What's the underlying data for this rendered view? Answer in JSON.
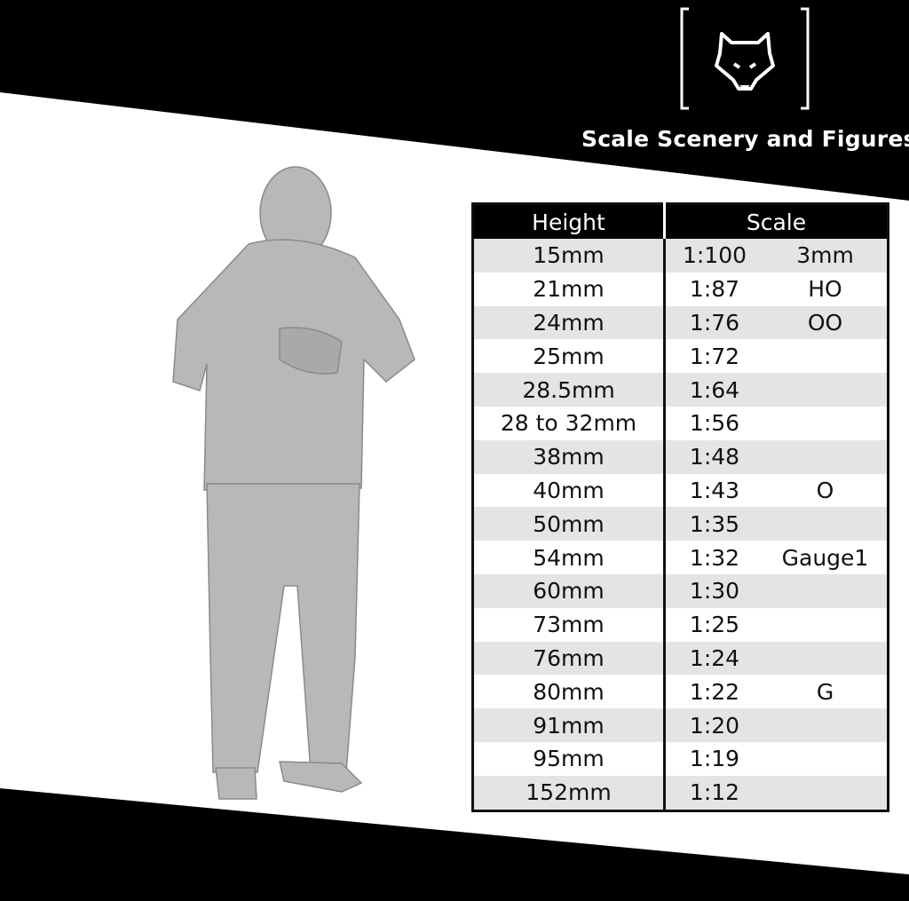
{
  "brand": {
    "name": "Scale Scenery and Figures",
    "logo_icon": "wolf-head-icon"
  },
  "colors": {
    "band": "#000000",
    "row_alt": "#e4e4e4",
    "figure": "#b8b8b8"
  },
  "table": {
    "headers": [
      "Height",
      "Scale"
    ],
    "rows": [
      {
        "height": "15mm",
        "ratio": "1:100",
        "gauge": "3mm"
      },
      {
        "height": "21mm",
        "ratio": "1:87",
        "gauge": "HO"
      },
      {
        "height": "24mm",
        "ratio": "1:76",
        "gauge": "OO"
      },
      {
        "height": "25mm",
        "ratio": "1:72",
        "gauge": ""
      },
      {
        "height": "28.5mm",
        "ratio": "1:64",
        "gauge": ""
      },
      {
        "height": "28 to 32mm",
        "ratio": "1:56",
        "gauge": ""
      },
      {
        "height": "38mm",
        "ratio": "1:48",
        "gauge": ""
      },
      {
        "height": "40mm",
        "ratio": "1:43",
        "gauge": "O"
      },
      {
        "height": "50mm",
        "ratio": "1:35",
        "gauge": ""
      },
      {
        "height": "54mm",
        "ratio": "1:32",
        "gauge": "Gauge1"
      },
      {
        "height": "60mm",
        "ratio": "1:30",
        "gauge": ""
      },
      {
        "height": "73mm",
        "ratio": "1:25",
        "gauge": ""
      },
      {
        "height": "76mm",
        "ratio": "1:24",
        "gauge": ""
      },
      {
        "height": "80mm",
        "ratio": "1:22",
        "gauge": "G"
      },
      {
        "height": "91mm",
        "ratio": "1:20",
        "gauge": ""
      },
      {
        "height": "95mm",
        "ratio": "1:19",
        "gauge": ""
      },
      {
        "height": "152mm",
        "ratio": "1:12",
        "gauge": ""
      }
    ]
  }
}
